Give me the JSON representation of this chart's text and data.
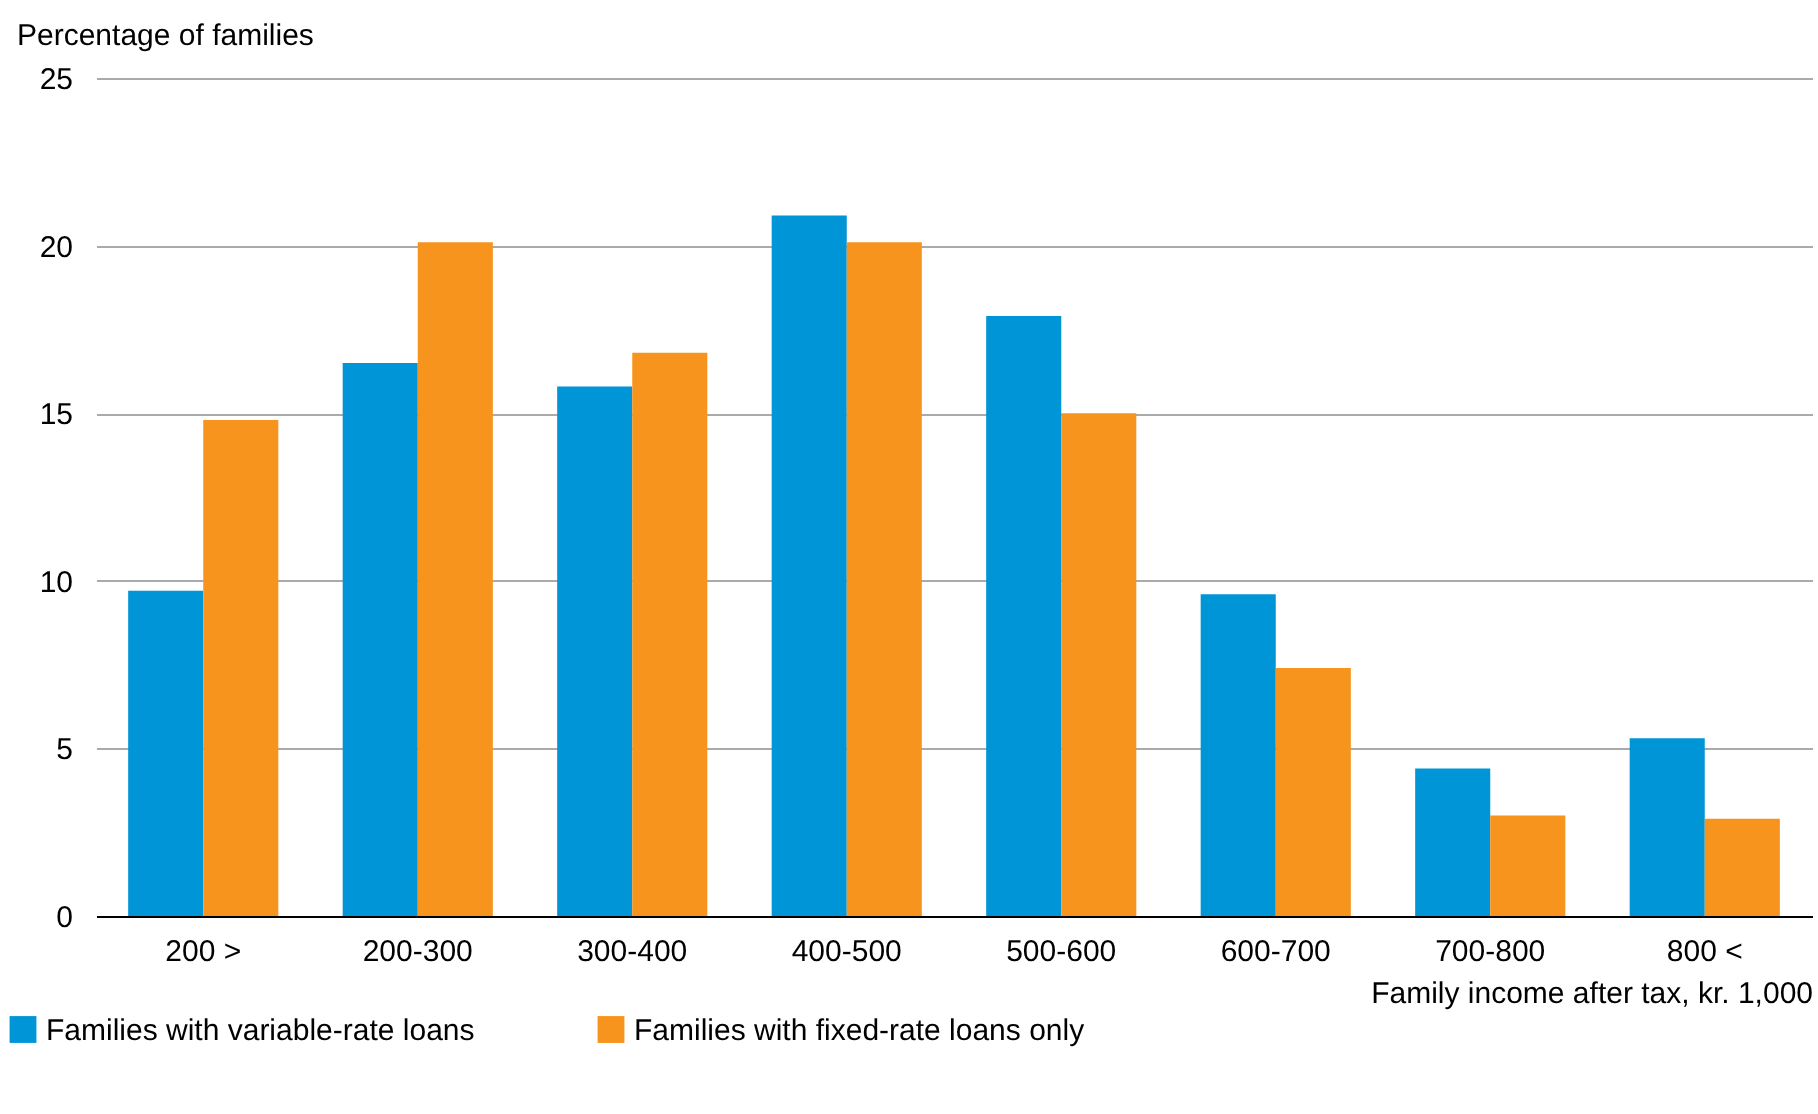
{
  "chart_data": {
    "type": "bar",
    "ylabel": "Percentage of families",
    "xlabel": "Family income after tax, kr. 1,000",
    "categories": [
      "200 >",
      "200-300",
      "300-400",
      "400-500",
      "500-600",
      "600-700",
      "700-800",
      "800 <"
    ],
    "series": [
      {
        "name": "Families with variable-rate loans",
        "color": "#0095d6",
        "values": [
          9.7,
          16.5,
          15.8,
          20.9,
          17.9,
          9.6,
          4.4,
          5.3
        ]
      },
      {
        "name": "Families with fixed-rate loans only",
        "color": "#f7941d",
        "values": [
          14.8,
          20.1,
          16.8,
          20.1,
          15.0,
          7.4,
          3.0,
          2.9
        ]
      }
    ],
    "ylim": [
      0,
      25
    ],
    "yticks": [
      0,
      5,
      10,
      15,
      20,
      25
    ],
    "grid": "y",
    "legend": "bottom left"
  }
}
